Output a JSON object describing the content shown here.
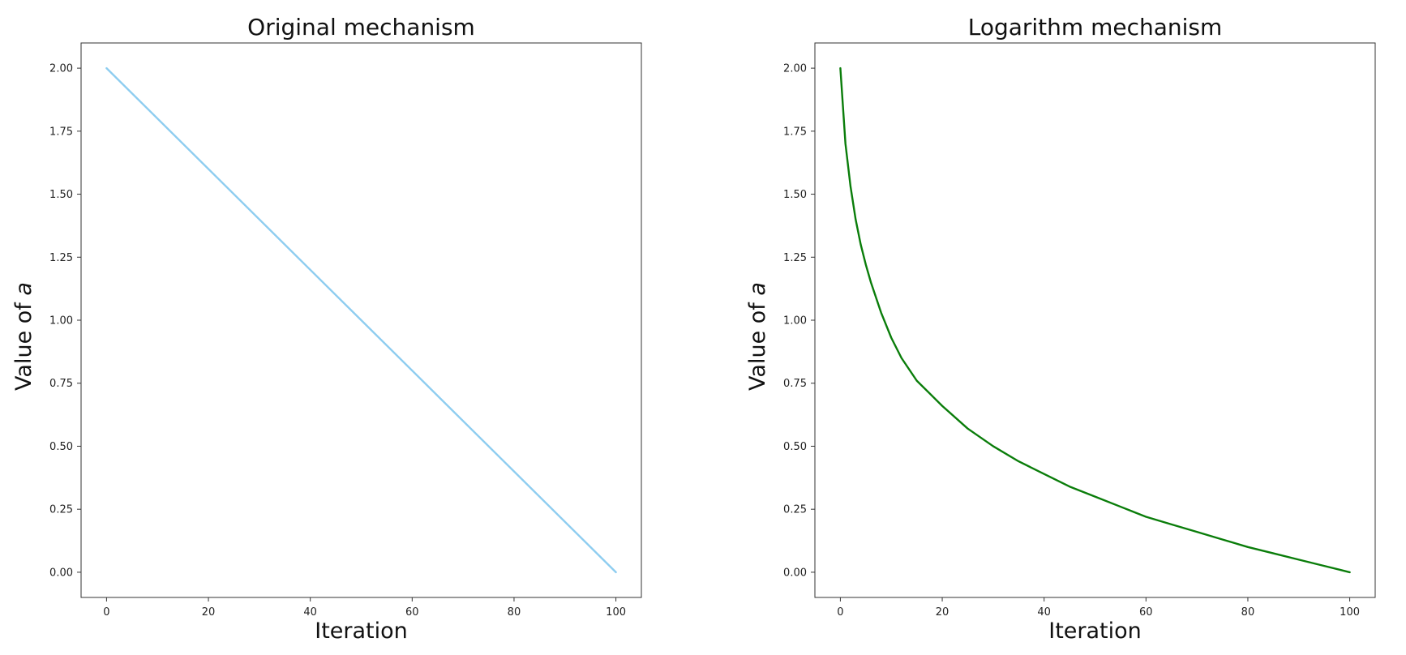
{
  "chart_data": [
    {
      "type": "line",
      "title": "Original mechanism",
      "xlabel": "Iteration",
      "ylabel_prefix": "Value of ",
      "ylabel_var": "a",
      "xlim": [
        -5,
        105
      ],
      "ylim": [
        -0.1,
        2.1
      ],
      "xticks": [
        0,
        20,
        40,
        60,
        80,
        100
      ],
      "xtick_labels": [
        "0",
        "20",
        "40",
        "60",
        "80",
        "100"
      ],
      "yticks": [
        0,
        0.25,
        0.5,
        0.75,
        1.0,
        1.25,
        1.5,
        1.75,
        2.0
      ],
      "ytick_labels": [
        "0.00",
        "0.25",
        "0.50",
        "0.75",
        "1.00",
        "1.25",
        "1.50",
        "1.75",
        "2.00"
      ],
      "grid": false,
      "series": [
        {
          "color": "#8ecdf0",
          "x": [
            0,
            100
          ],
          "y": [
            2.0,
            0.0
          ]
        }
      ]
    },
    {
      "type": "line",
      "title": "Logarithm mechanism",
      "xlabel": "Iteration",
      "ylabel_prefix": "Value of ",
      "ylabel_var": "a",
      "xlim": [
        -5,
        105
      ],
      "ylim": [
        -0.1,
        2.1
      ],
      "xticks": [
        0,
        20,
        40,
        60,
        80,
        100
      ],
      "xtick_labels": [
        "0",
        "20",
        "40",
        "60",
        "80",
        "100"
      ],
      "yticks": [
        0,
        0.25,
        0.5,
        0.75,
        1.0,
        1.25,
        1.5,
        1.75,
        2.0
      ],
      "ytick_labels": [
        "0.00",
        "0.25",
        "0.50",
        "0.75",
        "1.00",
        "1.25",
        "1.50",
        "1.75",
        "2.00"
      ],
      "grid": false,
      "series": [
        {
          "color": "#0a7d0a",
          "x": [
            0,
            1,
            2,
            3,
            4,
            5,
            6,
            8,
            10,
            12,
            15,
            20,
            25,
            30,
            35,
            40,
            45,
            50,
            55,
            60,
            65,
            70,
            75,
            80,
            85,
            90,
            95,
            100
          ],
          "y": [
            2.0,
            1.7,
            1.53,
            1.4,
            1.3,
            1.22,
            1.15,
            1.03,
            0.93,
            0.85,
            0.76,
            0.66,
            0.57,
            0.5,
            0.44,
            0.39,
            0.34,
            0.3,
            0.26,
            0.22,
            0.19,
            0.16,
            0.13,
            0.1,
            0.075,
            0.05,
            0.025,
            0.0
          ]
        }
      ]
    }
  ]
}
